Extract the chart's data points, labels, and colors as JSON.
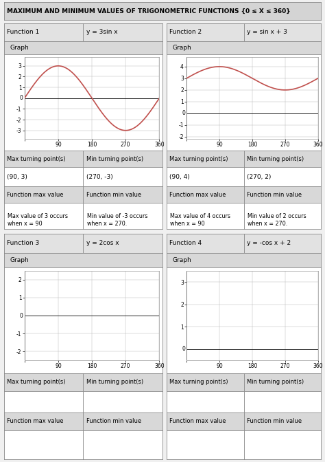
{
  "title": "MAXIMUM AND MINIMUM VALUES OF TRIGONOMETRIC FUNCTIONS {0 ≤ X ≤ 360}",
  "title_bg": "#d4d4d4",
  "functions": [
    {
      "name": "Function 1",
      "equation": "y = 3sin x",
      "has_graph": true,
      "amplitude": 3,
      "vertical_shift": 0,
      "func_type": "sin",
      "ylim": [
        -3.8,
        3.8
      ],
      "yticks": [
        -3,
        -2,
        -1,
        1,
        2,
        3
      ],
      "max_point": "(90, 3)",
      "min_point": "(270, -3)",
      "max_text": "Max value of 3 occurs\nwhen x = 90",
      "min_text": "Min value of -3 occurs\nwhen x = 270."
    },
    {
      "name": "Function 2",
      "equation": "y = sin x + 3",
      "has_graph": true,
      "amplitude": 1,
      "vertical_shift": 3,
      "func_type": "sin",
      "ylim": [
        -2.2,
        4.8
      ],
      "yticks": [
        -2,
        -1,
        1,
        2,
        3,
        4
      ],
      "max_point": "(90, 4)",
      "min_point": "(270, 2)",
      "max_text": "Max value of 4 occurs\nwhen x = 90",
      "min_text": "Min value of 2 occurs\nwhen x = 270."
    },
    {
      "name": "Function 3",
      "equation": "y = 2cos x",
      "has_graph": false,
      "amplitude": 2,
      "vertical_shift": 0,
      "func_type": "cos",
      "ylim": [
        -2.5,
        2.5
      ],
      "yticks": [
        -2,
        -1,
        1,
        2
      ],
      "max_point": "",
      "min_point": "",
      "max_text": "",
      "min_text": ""
    },
    {
      "name": "Function 4",
      "equation": "y = -cos x + 2",
      "has_graph": false,
      "amplitude": -1,
      "vertical_shift": 2,
      "func_type": "cos",
      "ylim": [
        -0.5,
        3.5
      ],
      "yticks": [
        1,
        2,
        3
      ],
      "max_point": "",
      "min_point": "",
      "max_text": "",
      "min_text": ""
    }
  ],
  "curve_color": "#c0504d",
  "grid_color": "#bbbbbb",
  "header_bg": "#e2e2e2",
  "cell_bg": "#ffffff",
  "border_color": "#888888",
  "label_bg": "#d8d8d8",
  "outer_bg": "#f0f0f0"
}
